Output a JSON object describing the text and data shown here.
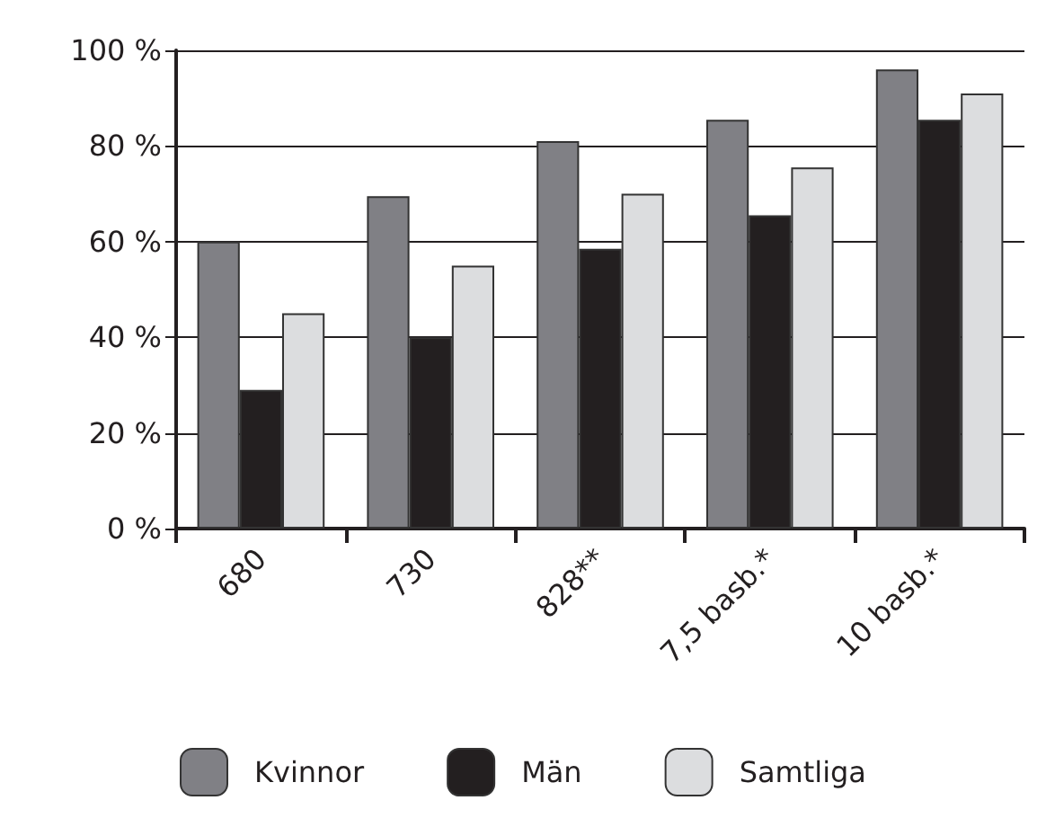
{
  "chart_data": {
    "type": "bar",
    "categories": [
      "680",
      "730",
      "828**",
      "7,5 basb.*",
      "10 basb.*"
    ],
    "series": [
      {
        "name": "Kvinnor",
        "color": "#808085",
        "values": [
          60,
          69.5,
          81,
          85.5,
          96
        ]
      },
      {
        "name": "Män",
        "color": "#231f20",
        "values": [
          29,
          40,
          58.5,
          65.5,
          85.5
        ]
      },
      {
        "name": "Samtliga",
        "color": "#dcdddf",
        "values": [
          45,
          55,
          70,
          75.5,
          91
        ]
      }
    ],
    "ylim": [
      0,
      100
    ],
    "yticks": [
      {
        "value": 0,
        "label": "0 %"
      },
      {
        "value": 20,
        "label": "20 %"
      },
      {
        "value": 40,
        "label": "40 %"
      },
      {
        "value": 60,
        "label": "60 %"
      },
      {
        "value": 80,
        "label": "80 %"
      },
      {
        "value": 100,
        "label": "100 %"
      }
    ],
    "grid": "y",
    "legend": "bottom"
  }
}
